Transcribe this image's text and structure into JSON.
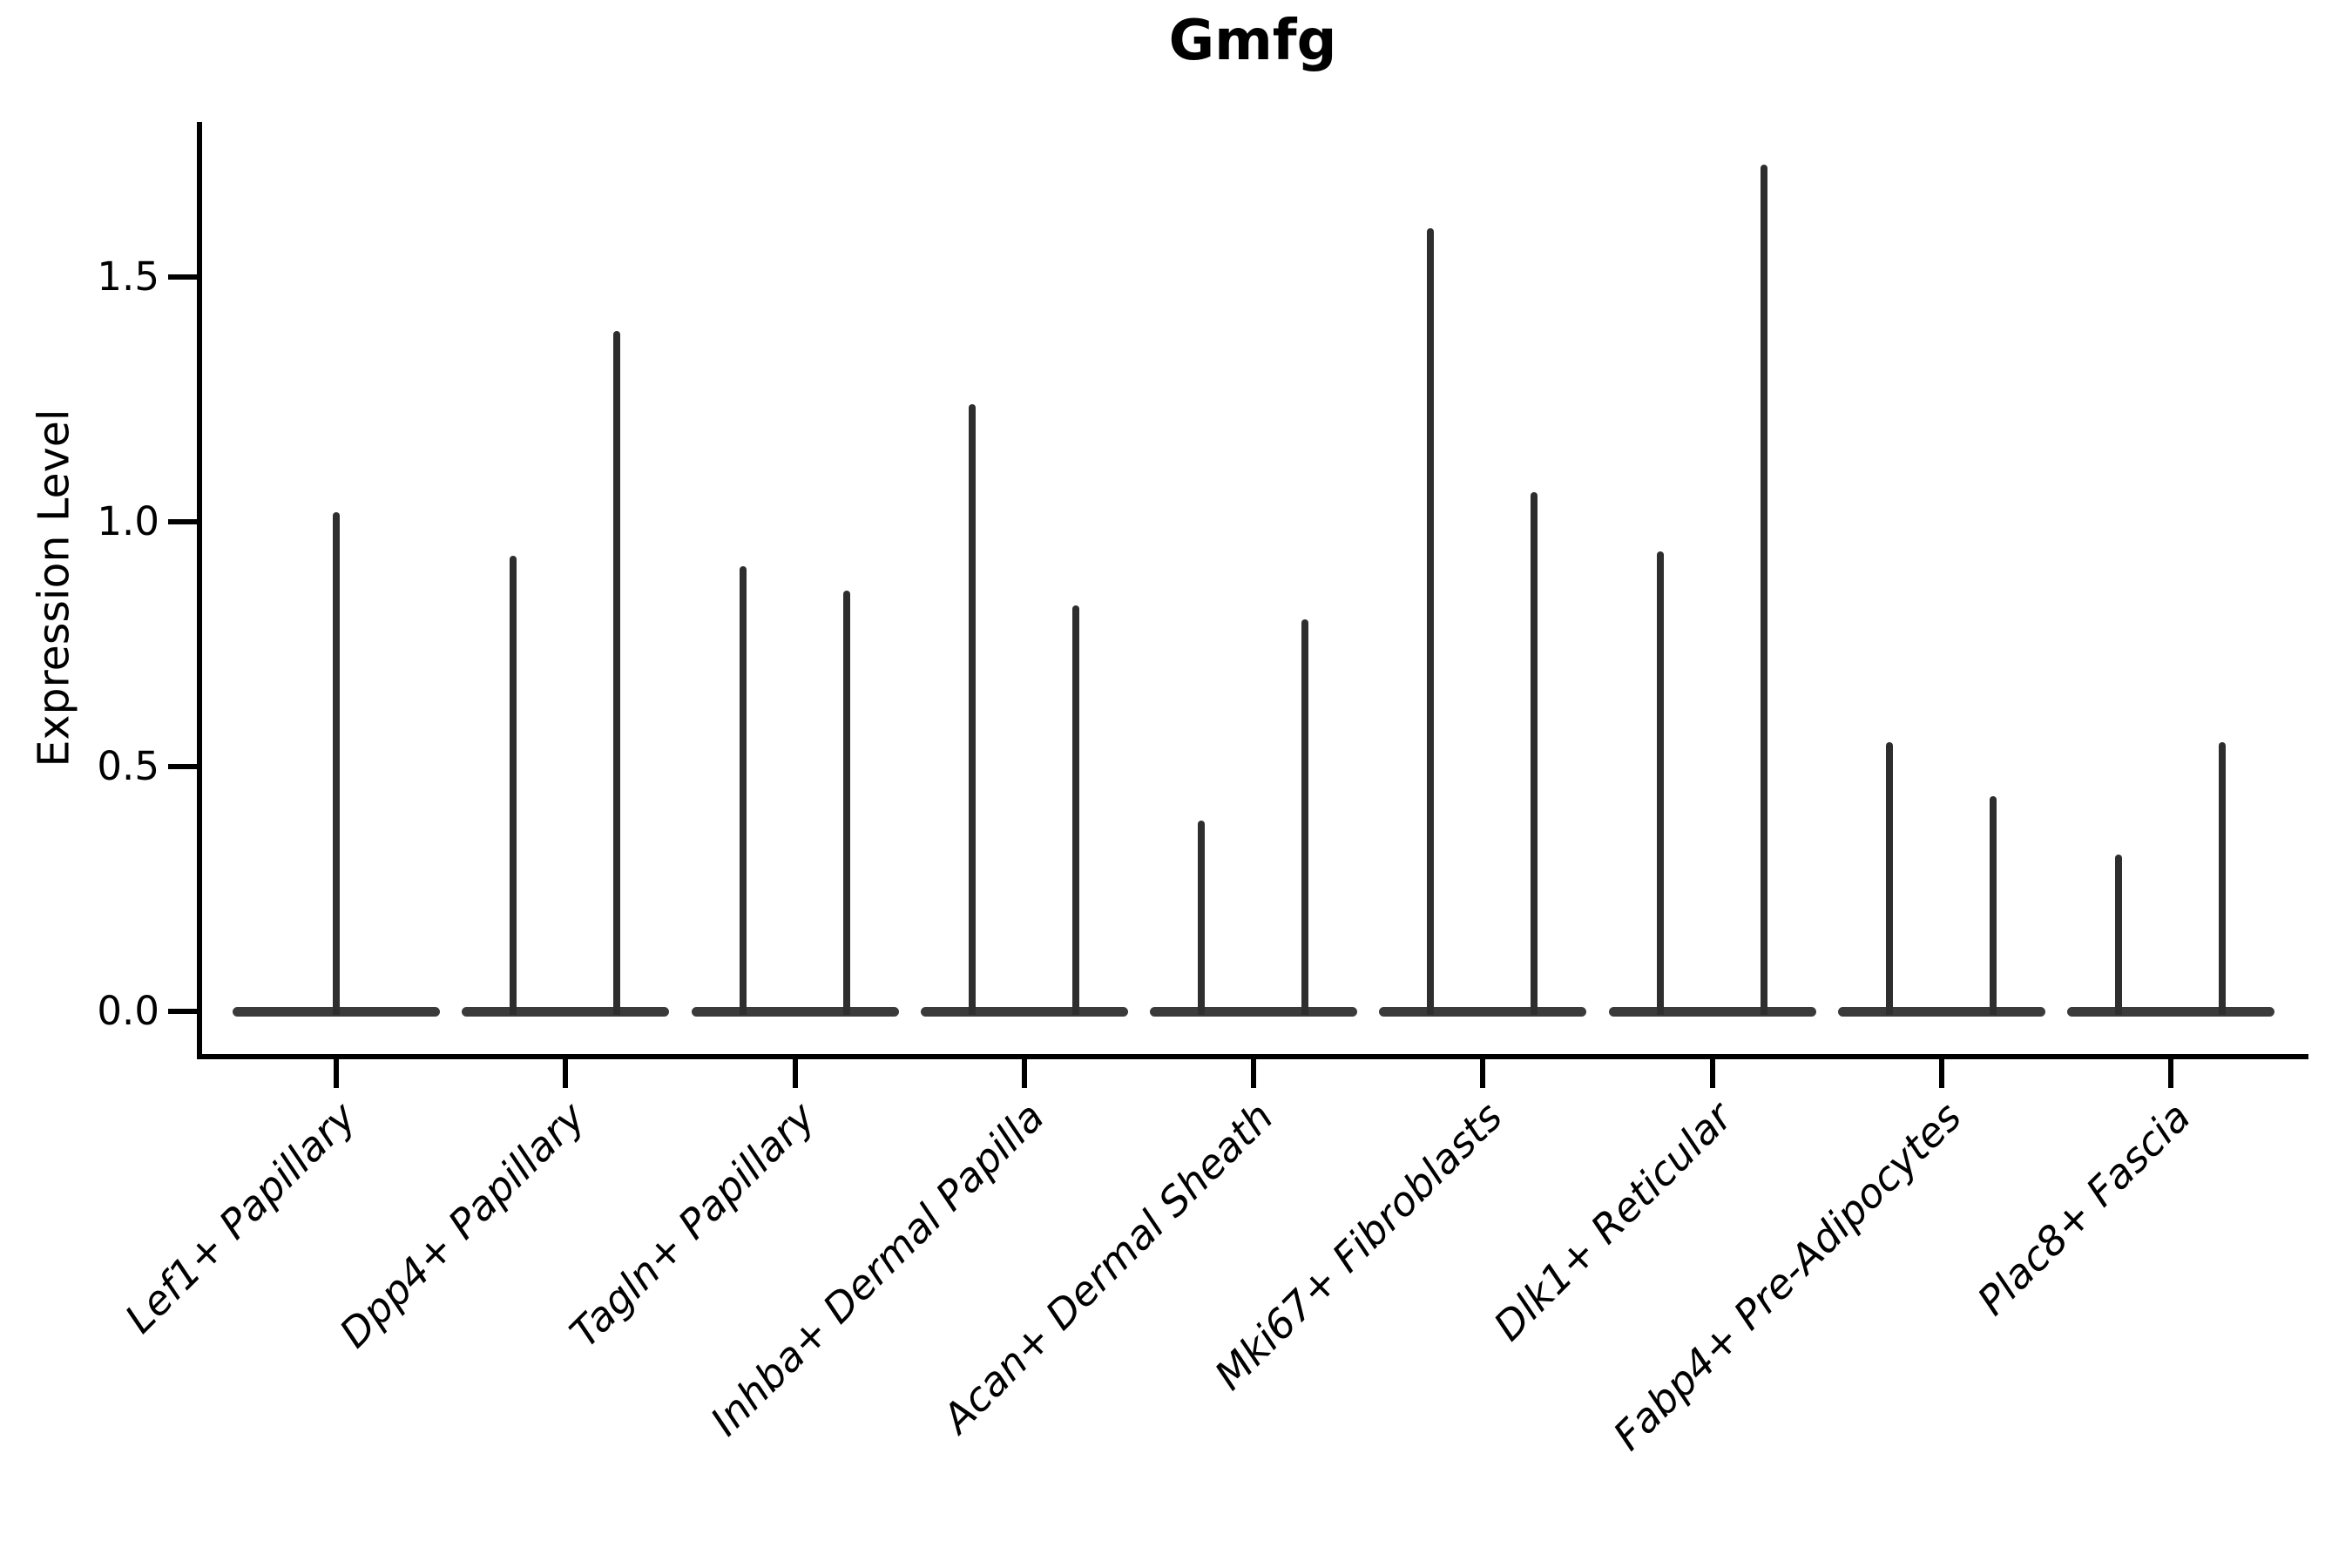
{
  "chart_data": {
    "type": "violin",
    "title": "Gmfg",
    "ylabel": "Expression Level",
    "xlabel": "",
    "ytick_labels": [
      "0.0",
      "0.5",
      "1.0",
      "1.5"
    ],
    "ytick_values": [
      0.0,
      0.5,
      1.0,
      1.5
    ],
    "ylim": [
      -0.09,
      1.82
    ],
    "grid": false,
    "legend_position": "none",
    "categories": [
      "Lef1+ Papillary",
      "Dpp4+ Papillary",
      "Tagln+ Papillary",
      "Inhba+ Dermal Papilla",
      "Acan+ Dermal Sheath",
      "Mki67+ Fibroblasts",
      "Dlk1+ Reticular",
      "Fabp4+ Pre-Adipocytes",
      "Plac8+ Fascia"
    ],
    "violins": [
      {
        "category": "Lef1+ Papillary",
        "spikes": [
          {
            "dx": 0,
            "max": 1.02
          }
        ]
      },
      {
        "category": "Dpp4+ Papillary",
        "spikes": [
          {
            "dx": -60,
            "max": 0.93
          },
          {
            "dx": 59,
            "max": 1.39
          }
        ]
      },
      {
        "category": "Tagln+ Papillary",
        "spikes": [
          {
            "dx": -60,
            "max": 0.91
          },
          {
            "dx": 59,
            "max": 0.86
          }
        ]
      },
      {
        "category": "Inhba+ Dermal Papilla",
        "spikes": [
          {
            "dx": -60,
            "max": 1.24
          },
          {
            "dx": 59,
            "max": 0.83
          }
        ]
      },
      {
        "category": "Acan+ Dermal Sheath",
        "spikes": [
          {
            "dx": -60,
            "max": 0.39
          },
          {
            "dx": 59,
            "max": 0.8
          }
        ]
      },
      {
        "category": "Mki67+ Fibroblasts",
        "spikes": [
          {
            "dx": -60,
            "max": 1.6
          },
          {
            "dx": 59,
            "max": 1.06
          }
        ]
      },
      {
        "category": "Dlk1+ Reticular",
        "spikes": [
          {
            "dx": -60,
            "max": 0.94
          },
          {
            "dx": 59,
            "max": 1.73
          }
        ]
      },
      {
        "category": "Fabp4+ Pre-Adipocytes",
        "spikes": [
          {
            "dx": -60,
            "max": 0.55
          },
          {
            "dx": 59,
            "max": 0.44
          }
        ]
      },
      {
        "category": "Plac8+ Fascia",
        "spikes": [
          {
            "dx": -60,
            "max": 0.32
          },
          {
            "dx": 59,
            "max": 0.55
          }
        ]
      }
    ],
    "colors": {
      "spike": "#2e2e2e",
      "violin_base": "#3a3a3a",
      "axis": "#000000",
      "text": "#000000",
      "background": "#ffffff"
    }
  }
}
